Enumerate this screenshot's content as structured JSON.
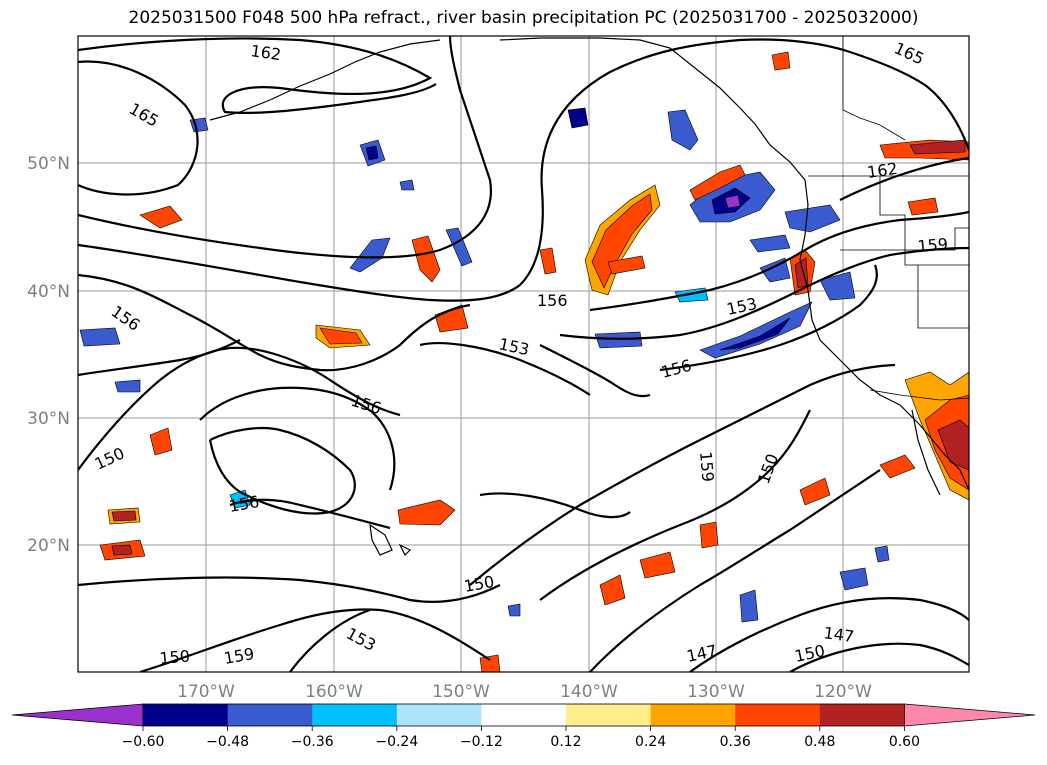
{
  "title": "2025031500 F048 500 hPa refract., river basin precipitation PC (2025031700 - 2025032000)",
  "lat_labels": [
    "50°N",
    "40°N",
    "30°N",
    "20°N"
  ],
  "lon_labels": [
    "170°W",
    "160°W",
    "150°W",
    "140°W",
    "130°W",
    "120°W"
  ],
  "contour_labels": [
    "162",
    "165",
    "165",
    "162",
    "159",
    "156",
    "156",
    "153",
    "153",
    "156",
    "156",
    "150",
    "159",
    "156",
    "150",
    "150",
    "153",
    "159",
    "150",
    "147",
    "150",
    "147"
  ],
  "colorbar": {
    "ticks": [
      "−0.60",
      "−0.48",
      "−0.36",
      "−0.24",
      "−0.12",
      "0.12",
      "0.24",
      "0.36",
      "0.48",
      "0.60"
    ],
    "colors": [
      "#9932cc",
      "#00008b",
      "#3a5bd0",
      "#00bfff",
      "#aee4fa",
      "#ffffff",
      "#ffec8b",
      "#ffa500",
      "#ff4500",
      "#b22222",
      "#ff88aa"
    ]
  }
}
